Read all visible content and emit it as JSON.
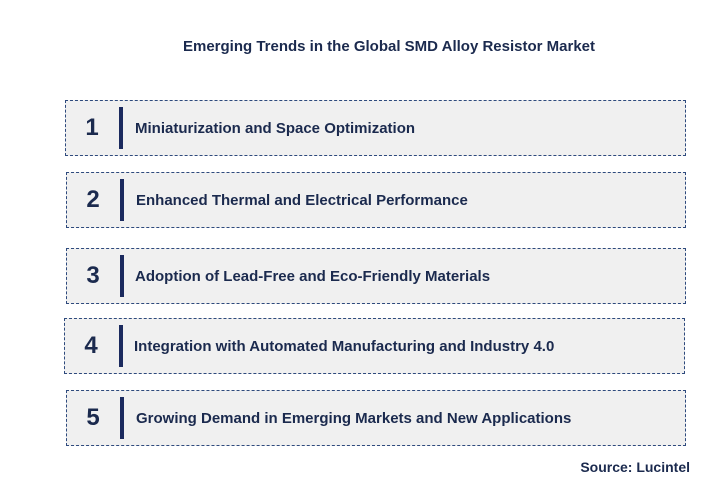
{
  "title": "Emerging Trends in the Global SMD Alloy Resistor Market",
  "trends": [
    {
      "number": "1",
      "label": "Miniaturization and Space Optimization"
    },
    {
      "number": "2",
      "label": "Enhanced Thermal and Electrical Performance"
    },
    {
      "number": "3",
      "label": "Adoption of Lead-Free and Eco-Friendly Materials"
    },
    {
      "number": "4",
      "label": "Integration with Automated Manufacturing and Industry 4.0"
    },
    {
      "number": "5",
      "label": "Growing Demand in Emerging Markets and New Applications"
    }
  ],
  "source": "Source: Lucintel",
  "colors": {
    "text": "#1b2a4e",
    "accent_bar": "#1b2a5e",
    "box_fill": "#f0f0f0",
    "box_border": "#2e4a7d"
  }
}
